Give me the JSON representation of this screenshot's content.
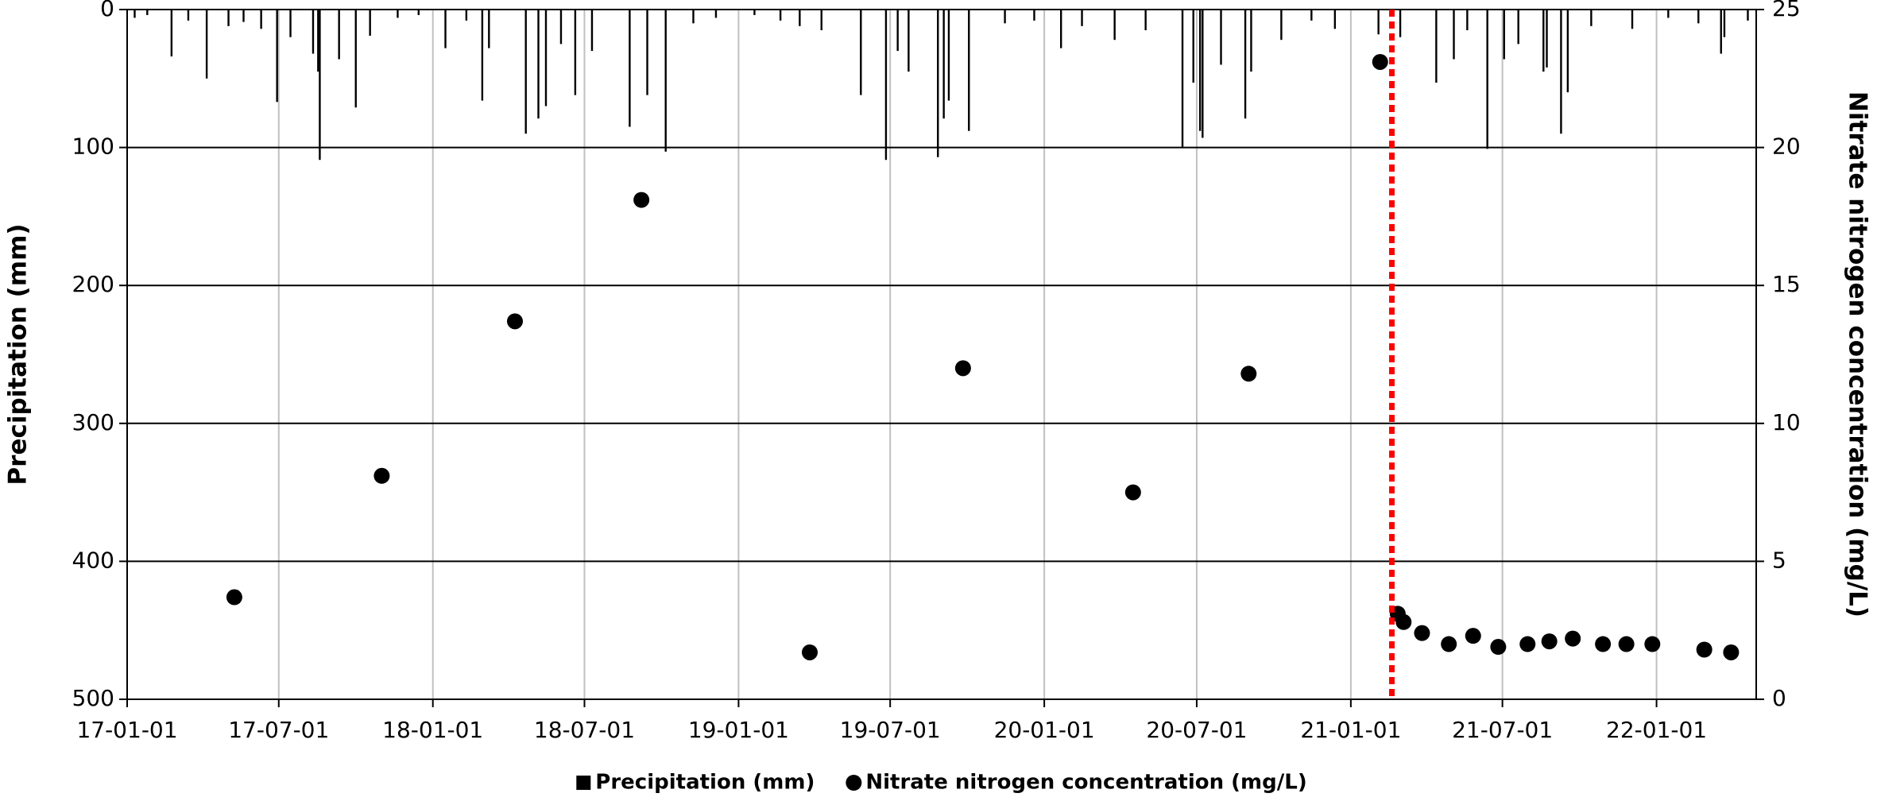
{
  "chart_data": {
    "type": "combo",
    "xlim": [
      "17-01-01",
      "22-04-30"
    ],
    "xticks": [
      "17-01-01",
      "17-07-01",
      "18-01-01",
      "18-07-01",
      "19-01-01",
      "19-07-01",
      "20-01-01",
      "20-07-01",
      "21-01-01",
      "21-07-01",
      "22-01-01"
    ],
    "ylim": [
      0,
      500
    ],
    "yticks": [
      0,
      100,
      200,
      300,
      400,
      500
    ],
    "y_inverted": true,
    "y2lim": [
      0,
      25
    ],
    "y2ticks": [
      0,
      5,
      10,
      15,
      20,
      25
    ],
    "ylabel": "Precipitation (mm)",
    "y2label": "Nitrate nitrogen concentration (mg/L)",
    "grid": true,
    "legend": "bottom",
    "vline": {
      "x": "21-02-19",
      "color": "#ff0000"
    },
    "series": [
      {
        "name": "Precipitation (mm)",
        "type": "bar",
        "axis": "y",
        "color": "#000000",
        "x": [
          "17-01-10",
          "17-01-25",
          "17-02-23",
          "17-03-15",
          "17-04-06",
          "17-05-02",
          "17-05-20",
          "17-06-10",
          "17-06-29",
          "17-07-15",
          "17-08-11",
          "17-08-17",
          "17-08-19",
          "17-09-11",
          "17-10-01",
          "17-10-18",
          "17-11-20",
          "17-12-15",
          "18-01-16",
          "18-02-10",
          "18-03-01",
          "18-03-09",
          "18-04-22",
          "18-05-07",
          "18-05-16",
          "18-06-03",
          "18-06-20",
          "18-07-10",
          "18-08-24",
          "18-09-14",
          "18-10-06",
          "18-11-08",
          "18-12-05",
          "19-01-20",
          "19-02-20",
          "19-03-15",
          "19-04-10",
          "19-05-27",
          "19-06-26",
          "19-07-10",
          "19-07-23",
          "19-08-27",
          "19-09-03",
          "19-09-09",
          "19-10-03",
          "19-11-15",
          "19-12-20",
          "20-01-21",
          "20-02-15",
          "20-03-25",
          "20-05-01",
          "20-06-14",
          "20-06-27",
          "20-07-05",
          "20-07-08",
          "20-07-30",
          "20-08-28",
          "20-09-04",
          "20-10-10",
          "20-11-15",
          "20-12-13",
          "21-02-03",
          "21-03-01",
          "21-04-13",
          "21-05-04",
          "21-05-20",
          "21-06-13",
          "21-07-03",
          "21-07-20",
          "21-08-19",
          "21-08-23",
          "21-09-09",
          "21-09-17",
          "21-10-15",
          "21-12-03",
          "22-01-15",
          "22-02-20",
          "22-03-19",
          "22-03-23",
          "22-04-20"
        ],
        "values": [
          6,
          4,
          34,
          8,
          50,
          12,
          9,
          14,
          67,
          20,
          32,
          45,
          109,
          36,
          71,
          19,
          6,
          4,
          28,
          8,
          66,
          28,
          90,
          79,
          70,
          25,
          62,
          30,
          85,
          62,
          103,
          10,
          6,
          4,
          8,
          12,
          15,
          62,
          109,
          30,
          45,
          107,
          79,
          66,
          88,
          10,
          8,
          28,
          12,
          22,
          15,
          100,
          53,
          88,
          93,
          40,
          79,
          45,
          22,
          8,
          14,
          18,
          20,
          53,
          36,
          15,
          101,
          36,
          25,
          45,
          42,
          90,
          60,
          12,
          14,
          6,
          10,
          32,
          20,
          8
        ]
      },
      {
        "name": "Nitrate nitrogen concentration (mg/L)",
        "type": "scatter",
        "axis": "y2",
        "color": "#000000",
        "x": [
          "17-05-09",
          "17-11-01",
          "18-04-09",
          "18-09-07",
          "19-03-27",
          "19-09-26",
          "20-04-16",
          "20-09-01",
          "21-02-05",
          "21-02-26",
          "21-03-05",
          "21-03-27",
          "21-04-28",
          "21-05-27",
          "21-06-26",
          "21-07-31",
          "21-08-26",
          "21-09-23",
          "21-10-29",
          "21-11-26",
          "21-12-27",
          "22-02-27",
          "22-03-31"
        ],
        "values": [
          3.7,
          8.1,
          13.7,
          18.1,
          1.7,
          12.0,
          7.5,
          11.8,
          23.1,
          3.1,
          2.8,
          2.4,
          2.0,
          2.3,
          1.9,
          2.0,
          2.1,
          2.2,
          2.0,
          2.0,
          2.0,
          1.8,
          1.7
        ]
      }
    ]
  }
}
